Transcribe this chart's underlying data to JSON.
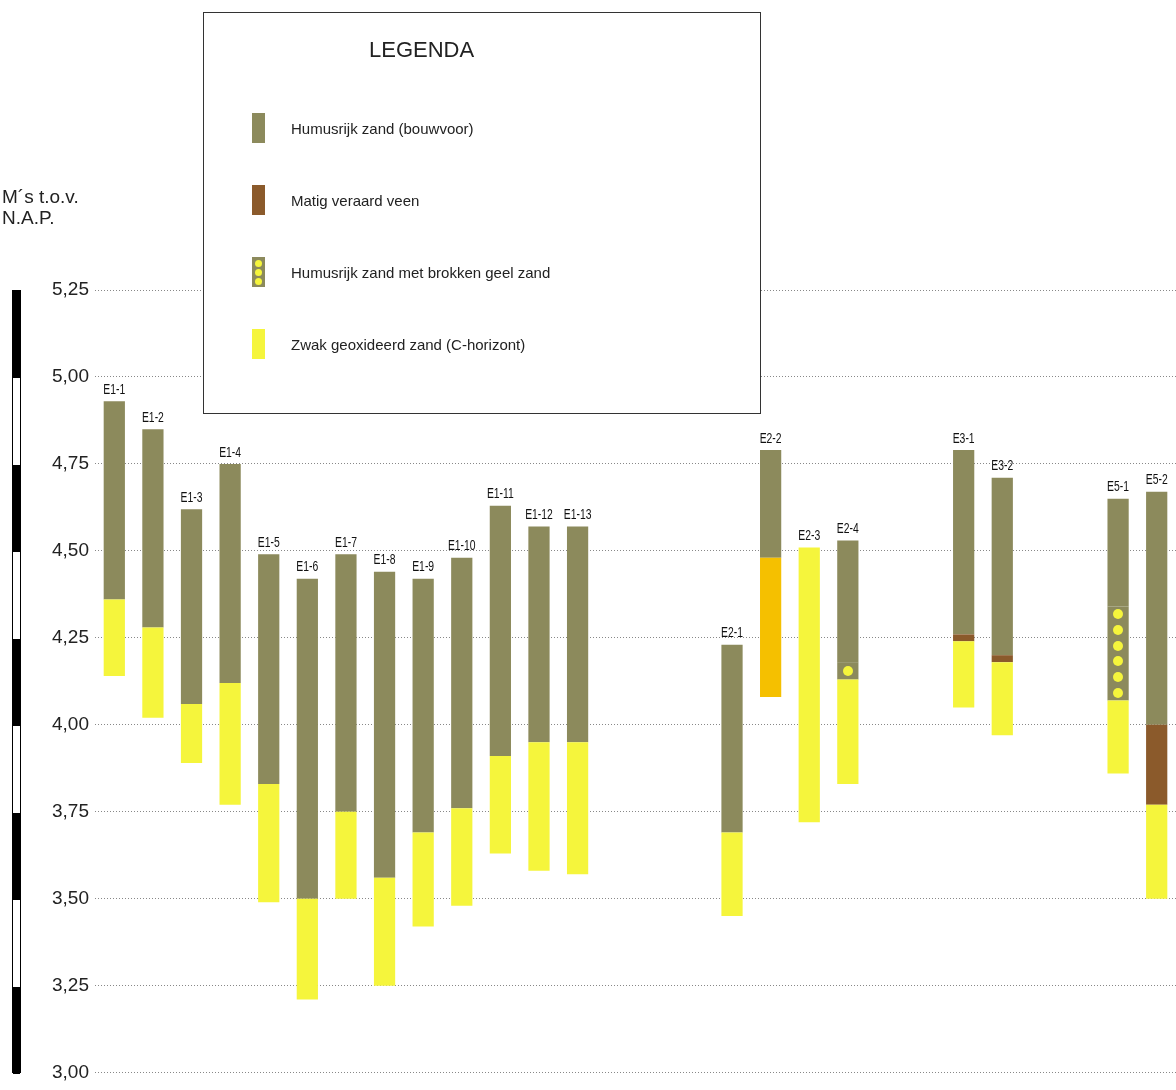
{
  "chart_data": {
    "type": "bar",
    "ylabel": "M´s t.o.v. N.A.P.",
    "legend_title": "LEGENDA",
    "legend": "top",
    "grid": "y",
    "categories": [
      "E1-1",
      "E1-2",
      "E1-3",
      "E1-4",
      "E1-5",
      "E1-6",
      "E1-7",
      "E1-8",
      "E1-9",
      "E1-10",
      "E1-11",
      "E1-12",
      "E1-13",
      null,
      null,
      null,
      "E2-1",
      "E2-2",
      "E2-3",
      "E2-4",
      null,
      null,
      "E3-1",
      "E3-2",
      null,
      null,
      "E5-1",
      "E5-2"
    ],
    "series": [
      {
        "name": "Zwak geoxideerd zand (C-horizont)",
        "color": "#f5f53c",
        "base": [
          4.14,
          4.02,
          3.89,
          3.77,
          3.49,
          3.21,
          3.5,
          3.25,
          3.42,
          3.48,
          3.63,
          3.58,
          3.57,
          null,
          null,
          null,
          3.45,
          null,
          3.72,
          3.83,
          null,
          null,
          4.05,
          3.97,
          null,
          null,
          3.86,
          3.5
        ],
        "values": [
          0.22,
          0.26,
          0.17,
          0.35,
          0.34,
          0.29,
          0.25,
          0.31,
          0.27,
          0.28,
          0.28,
          0.37,
          0.38,
          null,
          null,
          null,
          0.24,
          null,
          0.79,
          0.3,
          null,
          null,
          0.19,
          0.21,
          null,
          null,
          0.21,
          0.27
        ]
      },
      {
        "color": "#f5c000",
        "base": [
          null,
          null,
          null,
          null,
          null,
          null,
          null,
          null,
          null,
          null,
          null,
          null,
          null,
          null,
          null,
          null,
          null,
          4.08,
          null,
          null,
          null,
          null,
          null,
          null,
          null,
          null,
          null,
          null
        ],
        "values": [
          null,
          null,
          null,
          null,
          null,
          null,
          null,
          null,
          null,
          null,
          null,
          null,
          null,
          null,
          null,
          null,
          null,
          0.4,
          null,
          null,
          null,
          null,
          null,
          null,
          null,
          null,
          null,
          null
        ]
      },
      {
        "name": "Humusrijk zand met brokken geel zand",
        "color": "#8c8a5c",
        "base": [
          null,
          null,
          null,
          null,
          null,
          null,
          null,
          null,
          null,
          null,
          null,
          null,
          null,
          null,
          null,
          null,
          null,
          null,
          null,
          4.13,
          null,
          null,
          null,
          null,
          null,
          null,
          4.07,
          null
        ],
        "values": [
          null,
          null,
          null,
          null,
          null,
          null,
          null,
          null,
          null,
          null,
          null,
          null,
          null,
          null,
          null,
          null,
          null,
          null,
          null,
          0.05,
          null,
          null,
          null,
          null,
          null,
          null,
          0.27,
          null
        ]
      },
      {
        "name": "Matig veraard veen",
        "color": "#8b5a2b",
        "base": [
          null,
          null,
          null,
          null,
          null,
          null,
          null,
          null,
          null,
          null,
          null,
          null,
          null,
          null,
          null,
          null,
          null,
          null,
          null,
          null,
          null,
          null,
          4.24,
          4.18,
          null,
          null,
          null,
          3.77
        ],
        "values": [
          null,
          null,
          null,
          null,
          null,
          null,
          null,
          null,
          null,
          null,
          null,
          null,
          null,
          null,
          null,
          null,
          null,
          null,
          null,
          null,
          null,
          null,
          0.02,
          0.02,
          null,
          null,
          null,
          0.23
        ]
      },
      {
        "name": "Humusrijk zand (bouwvoor)",
        "color": "#8c8a5c",
        "base": [
          4.36,
          4.28,
          4.06,
          4.12,
          3.83,
          3.5,
          3.75,
          3.56,
          3.69,
          3.76,
          3.91,
          3.95,
          3.95,
          null,
          null,
          null,
          3.69,
          4.48,
          null,
          4.18,
          null,
          null,
          4.26,
          4.2,
          null,
          null,
          4.34,
          4.0
        ],
        "values": [
          0.57,
          0.57,
          0.56,
          0.63,
          0.66,
          0.92,
          0.74,
          0.88,
          0.73,
          0.72,
          0.72,
          0.62,
          0.62,
          null,
          null,
          null,
          0.54,
          0.31,
          null,
          0.35,
          null,
          null,
          0.53,
          0.51,
          null,
          null,
          0.31,
          0.67
        ]
      }
    ],
    "ylim": [
      3.0,
      5.25
    ],
    "yticks": [
      {
        "value": 3.0,
        "label": "3,00"
      },
      {
        "value": 3.25,
        "label": "3,25"
      },
      {
        "value": 3.5,
        "label": "3,50"
      },
      {
        "value": 3.75,
        "label": "3,75"
      },
      {
        "value": 4.0,
        "label": "4,00"
      },
      {
        "value": 4.25,
        "label": "4,25"
      },
      {
        "value": 4.5,
        "label": "4,50"
      },
      {
        "value": 4.75,
        "label": "4,75"
      },
      {
        "value": 5.0,
        "label": "5,00"
      },
      {
        "value": 5.25,
        "label": "5,25"
      }
    ]
  }
}
